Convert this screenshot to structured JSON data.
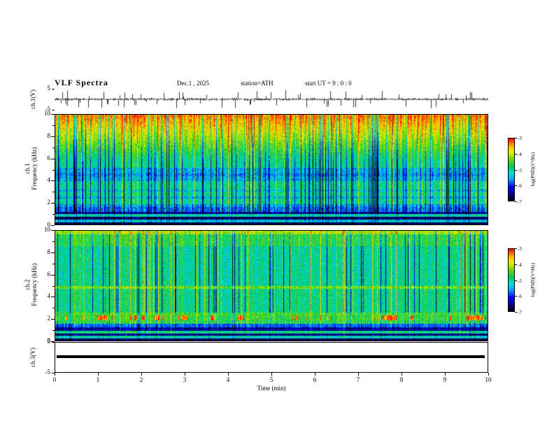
{
  "header": {
    "title": "VLF Spectra",
    "date": "Dec.1 , 2025",
    "station": "station=ATH",
    "start_ut": "start UT =  9 : 0 : 0"
  },
  "xaxis": {
    "label": "Time (min)",
    "range": [
      0,
      10
    ],
    "ticks": [
      0,
      1,
      2,
      3,
      4,
      5,
      6,
      7,
      8,
      9,
      10
    ]
  },
  "colorbar": {
    "label": "log(PSD)(V²/Hz)",
    "ticks": [
      -3,
      -4,
      -5,
      -6,
      -7
    ],
    "range": [
      -7,
      -3
    ],
    "gradient": [
      {
        "t": 0.0,
        "c": "#000000"
      },
      {
        "t": 0.1,
        "c": "#00008b"
      },
      {
        "t": 0.22,
        "c": "#0000ff"
      },
      {
        "t": 0.35,
        "c": "#00aaff"
      },
      {
        "t": 0.45,
        "c": "#00e0d0"
      },
      {
        "t": 0.55,
        "c": "#00c853"
      },
      {
        "t": 0.68,
        "c": "#7ddc00"
      },
      {
        "t": 0.78,
        "c": "#eef000"
      },
      {
        "t": 0.86,
        "c": "#ffc400"
      },
      {
        "t": 0.93,
        "c": "#ff6a00"
      },
      {
        "t": 1.0,
        "c": "#ff0000"
      }
    ]
  },
  "chart_data": [
    {
      "id": "ch1_waveform",
      "type": "line",
      "ylabel": "ch.1(V)",
      "ylim": [
        -5,
        5
      ],
      "yticks": [
        5,
        -5
      ],
      "xlim": [
        0,
        10
      ],
      "color": "#000000",
      "signal": "broadband audio-frequency noise, mean 0 V, dense ±1 V fluctuations with frequent impulsive spikes reaching ±5 V across the full 0-10 min record"
    },
    {
      "id": "ch1_spectrogram",
      "type": "heatmap",
      "ylabel_lines": [
        "ch.1",
        "Frequency (kHz)"
      ],
      "ylim": [
        0,
        10
      ],
      "yticks": [
        0,
        2,
        4,
        6,
        8,
        10
      ],
      "xlim": [
        0,
        10
      ],
      "zlabel": "log(PSD)(V²/Hz)",
      "zlim": [
        -7,
        -3
      ],
      "description": "VLF spectrogram: intense red/orange PSD (≈ -3) above ~7 kHz grading through yellow to green near 6 kHz; green mid band 1-6 kHz crossed by dense vertical blue dropouts and darker blue horizontal bands near 4-5 kHz and 1.5-2 kHz; dark blue/black horizontal stripes below 1 kHz; impulsive vertical striations at all frequencies"
    },
    {
      "id": "ch2_spectrogram",
      "type": "heatmap",
      "ylabel_lines": [
        "ch.2",
        "Frequency (kHz)"
      ],
      "ylim": [
        0,
        10
      ],
      "yticks": [
        0,
        2,
        4,
        6,
        8,
        10
      ],
      "xlim": [
        0,
        10
      ],
      "zlabel": "log(PSD)(V²/Hz)",
      "zlim": [
        -7,
        -3
      ],
      "description": "VLF spectrogram: mostly green/cyan with many vertical blue dropouts; yellow speckle above ~8.5 kHz; intermittent dashed red horizontal band near 2 kHz; thin yellow lines near 1.5, 2.3 and 4.8 kHz; black horizontal bands below 1 kHz"
    },
    {
      "id": "ch3_waveform",
      "type": "line",
      "ylabel": "ch.3(V)",
      "ylim": [
        -5,
        5
      ],
      "yticks": [
        5,
        -5
      ],
      "xlim": [
        0,
        10
      ],
      "color": "#000000",
      "signal": "constant 0 V for the whole record (flat thick black line, no signal)"
    }
  ]
}
